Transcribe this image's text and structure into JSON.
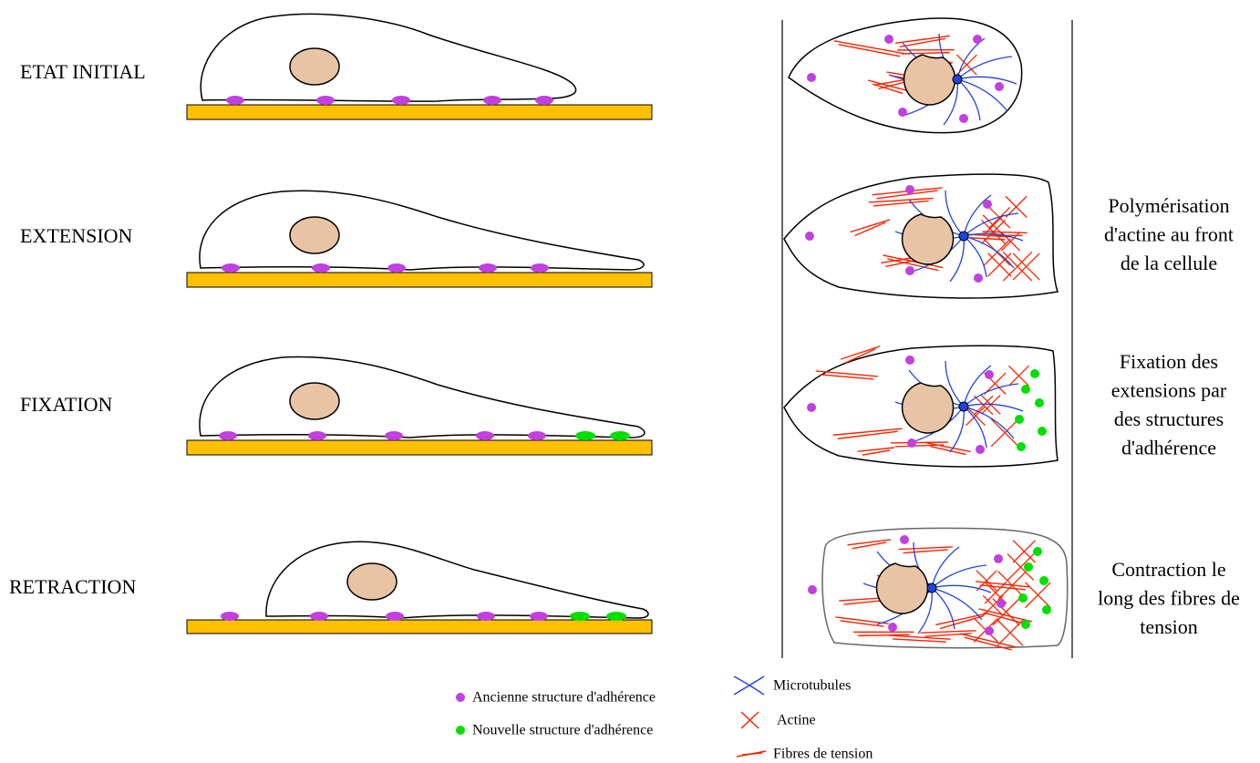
{
  "stages": [
    {
      "label": "ETAT INITIAL"
    },
    {
      "label": "EXTENSION",
      "description": [
        "Polymérisation",
        "d'actine au front",
        "de la cellule"
      ]
    },
    {
      "label": "FIXATION",
      "description": [
        "Fixation des",
        "extensions par",
        "des structures",
        "d'adhérence"
      ]
    },
    {
      "label": "RETRACTION",
      "description": [
        "Contraction le",
        "long des fibres de",
        "tension"
      ]
    }
  ],
  "legend": {
    "old_adhesion": "Ancienne structure d'adhérence",
    "new_adhesion": "Nouvelle structure d'adhérence",
    "microtubules": "Microtubules",
    "actin": "Actine",
    "stress_fibers": "Fibres de tension"
  }
}
